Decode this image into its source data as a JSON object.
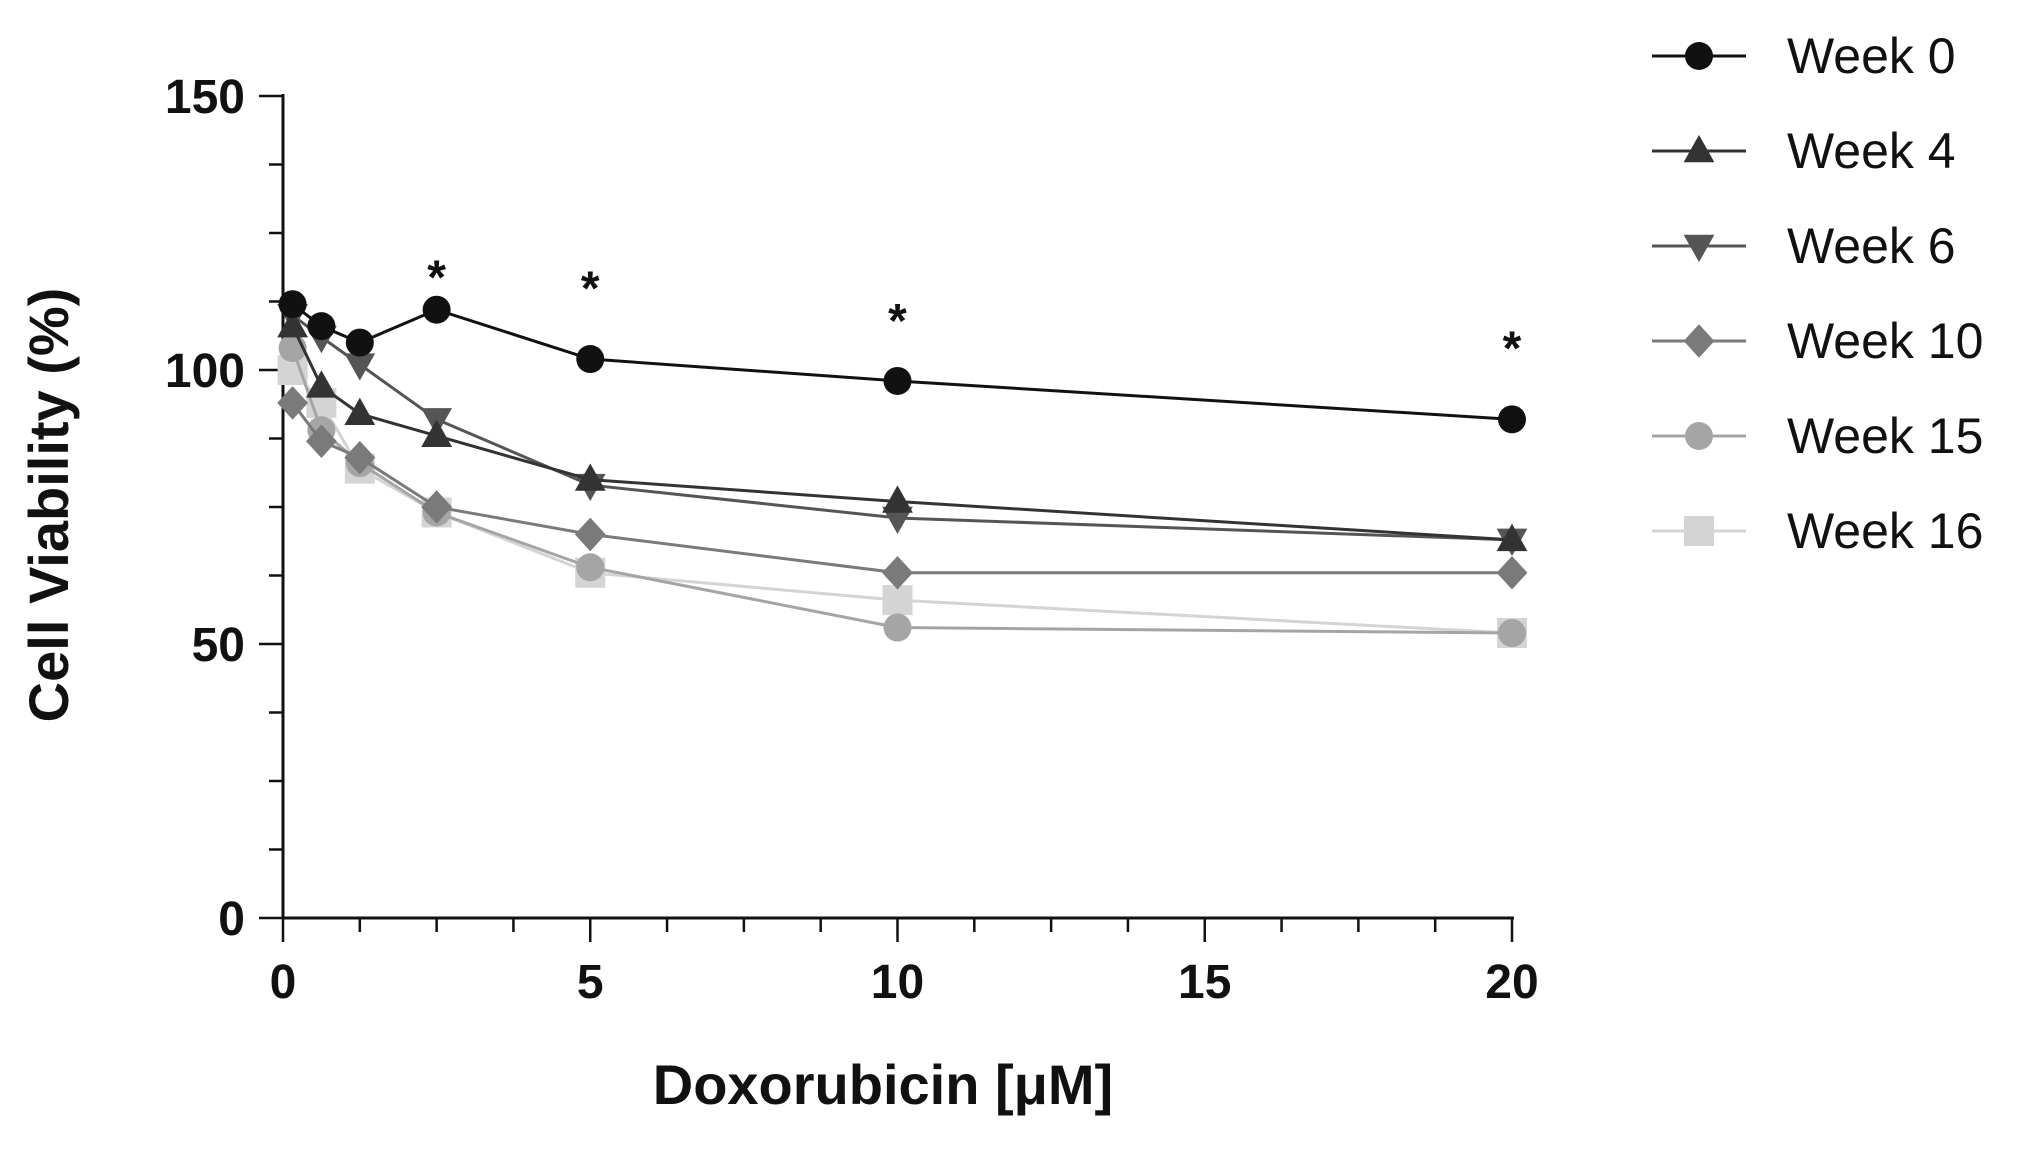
{
  "chart_data": {
    "type": "line",
    "xlabel": "Doxorubicin [μM]",
    "ylabel": "Cell Viability (%)",
    "xlim": [
      0,
      20
    ],
    "ylim": [
      0,
      150
    ],
    "x_ticks": [
      0,
      5,
      10,
      15,
      20
    ],
    "x_tick_labels": [
      "0",
      "5",
      "10",
      "15",
      "20"
    ],
    "x_minor_step": 1.25,
    "y_ticks": [
      0,
      50,
      100,
      150
    ],
    "y_tick_labels": [
      "0",
      "50",
      "100",
      "150"
    ],
    "y_minor_step": 12.5,
    "grid": false,
    "legend_position": "right",
    "x": [
      0.156,
      0.625,
      1.25,
      2.5,
      5,
      10,
      20
    ],
    "series": [
      {
        "name": "Week 0",
        "marker": "circle",
        "color": "#111111",
        "x": [
          0.156,
          0.625,
          1.25,
          2.5,
          5,
          10,
          20
        ],
        "values": [
          112,
          108,
          105,
          111,
          102,
          98,
          91
        ]
      },
      {
        "name": "Week 4",
        "marker": "triangle-up",
        "color": "#333333",
        "x": [
          0.156,
          0.625,
          1.25,
          2.5,
          5,
          10,
          20
        ],
        "values": [
          108,
          97,
          92,
          88,
          80,
          76,
          69
        ]
      },
      {
        "name": "Week 6",
        "marker": "triangle-down",
        "color": "#555555",
        "x": [
          0.156,
          0.625,
          1.25,
          2.5,
          5,
          10,
          20
        ],
        "values": [
          110,
          106,
          101,
          91,
          79,
          73,
          69
        ]
      },
      {
        "name": "Week 10",
        "marker": "diamond",
        "color": "#7a7a7a",
        "x": [
          0.156,
          0.625,
          1.25,
          2.5,
          5,
          10,
          20
        ],
        "values": [
          94,
          87,
          84,
          75,
          70,
          63,
          63
        ]
      },
      {
        "name": "Week 15",
        "marker": "circle",
        "color": "#a5a5a5",
        "x": [
          0.156,
          0.625,
          1.25,
          2.5,
          5,
          10,
          20
        ],
        "values": [
          104,
          89,
          83,
          74,
          64,
          53,
          52
        ]
      },
      {
        "name": "Week 16",
        "marker": "square",
        "color": "#d4d4d4",
        "x": [
          0.156,
          0.625,
          1.25,
          2.5,
          5,
          10,
          20
        ],
        "values": [
          100,
          94,
          82,
          74,
          63,
          58,
          52
        ]
      }
    ],
    "annotations": [
      {
        "text": "*",
        "x": 2.5,
        "y": 118
      },
      {
        "text": "*",
        "x": 5,
        "y": 116
      },
      {
        "text": "*",
        "x": 10,
        "y": 110
      },
      {
        "text": "*",
        "x": 20,
        "y": 105
      }
    ]
  }
}
